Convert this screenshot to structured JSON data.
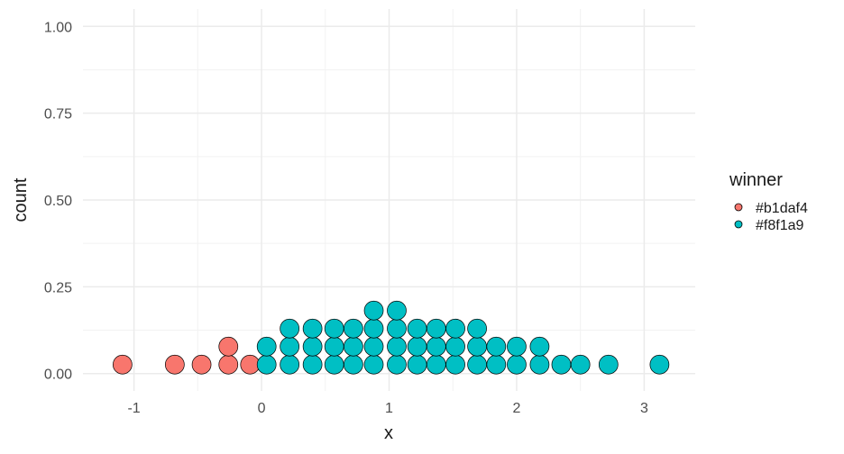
{
  "chart_data": {
    "type": "dotplot",
    "xlabel": "x",
    "ylabel": "count",
    "xlim": [
      -1.4,
      3.4
    ],
    "ylim": [
      -0.05,
      1.05
    ],
    "x_ticks": [
      -1,
      0,
      1,
      2,
      3
    ],
    "x_tick_labels": [
      "-1",
      "0",
      "1",
      "2",
      "3"
    ],
    "y_ticks": [
      0.0,
      0.25,
      0.5,
      0.75,
      1.0
    ],
    "y_tick_labels": [
      "0.00",
      "0.25",
      "0.50",
      "0.75",
      "1.00"
    ],
    "grid": true,
    "legend": {
      "title": "winner",
      "position": "right",
      "entries": [
        {
          "label": "#b1daf4",
          "color": "#F8766D"
        },
        {
          "label": "#f8f1a9",
          "color": "#00BFC4"
        }
      ]
    },
    "series": [
      {
        "name": "#b1daf4",
        "color": "#F8766D",
        "stacks": [
          {
            "x": -1.09,
            "count": 1
          },
          {
            "x": -0.68,
            "count": 1
          },
          {
            "x": -0.47,
            "count": 1
          },
          {
            "x": -0.26,
            "count": 2
          },
          {
            "x": -0.09,
            "count": 1
          }
        ]
      },
      {
        "name": "#f8f1a9",
        "color": "#00BFC4",
        "stacks": [
          {
            "x": 0.04,
            "count": 2
          },
          {
            "x": 0.22,
            "count": 3
          },
          {
            "x": 0.4,
            "count": 3
          },
          {
            "x": 0.57,
            "count": 3
          },
          {
            "x": 0.72,
            "count": 3
          },
          {
            "x": 0.88,
            "count": 4
          },
          {
            "x": 1.06,
            "count": 4
          },
          {
            "x": 1.22,
            "count": 3
          },
          {
            "x": 1.37,
            "count": 3
          },
          {
            "x": 1.52,
            "count": 3
          },
          {
            "x": 1.69,
            "count": 3
          },
          {
            "x": 1.84,
            "count": 2
          },
          {
            "x": 2.0,
            "count": 2
          },
          {
            "x": 2.18,
            "count": 2
          },
          {
            "x": 2.35,
            "count": 1
          },
          {
            "x": 2.5,
            "count": 1
          },
          {
            "x": 2.72,
            "count": 1
          },
          {
            "x": 3.12,
            "count": 1
          }
        ]
      }
    ]
  }
}
